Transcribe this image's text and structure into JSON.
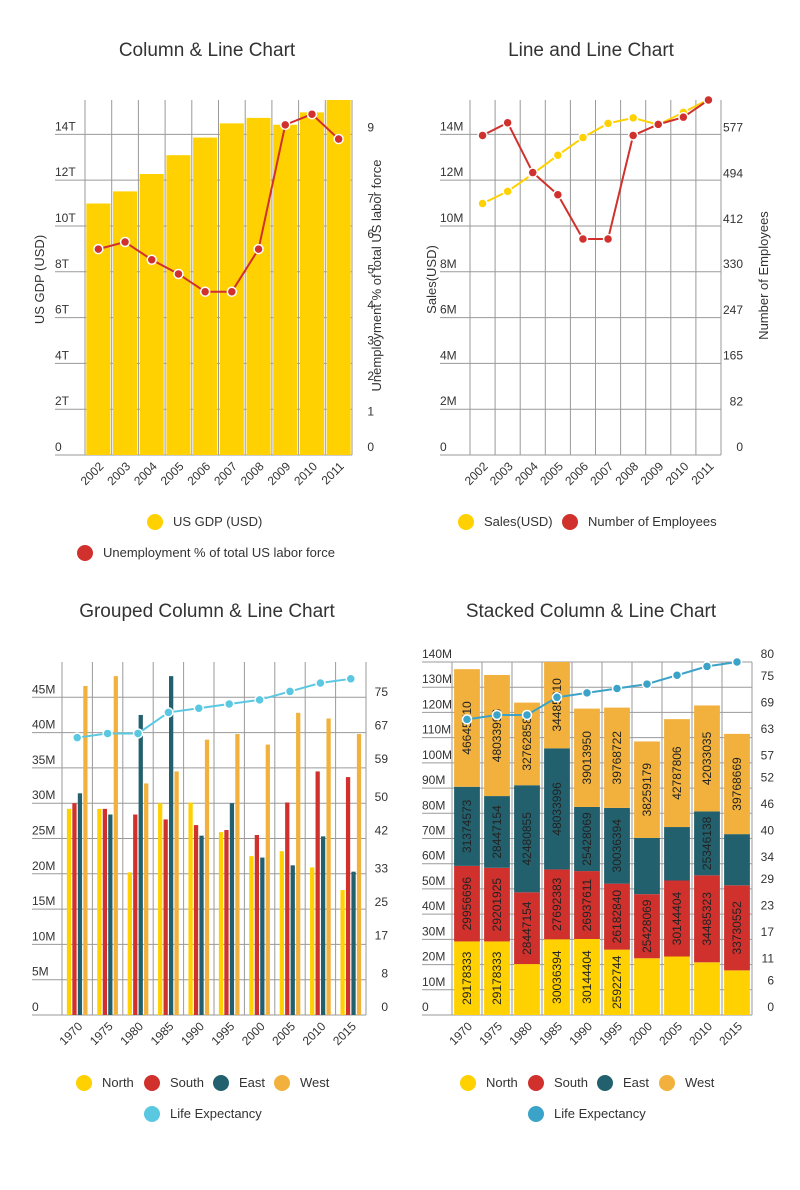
{
  "chart_data": [
    {
      "id": "chart1",
      "type": "bar",
      "title": "Column & Line Chart",
      "xlabel": "",
      "ylabel": "US GDP (USD)",
      "y2label": "Unemployment % of total US labor force",
      "categories": [
        "2002",
        "2003",
        "2004",
        "2005",
        "2006",
        "2007",
        "2008",
        "2009",
        "2010",
        "2011"
      ],
      "grid": true,
      "ylim": [
        0,
        15.5
      ],
      "y2lim": [
        0,
        10
      ],
      "yticks": [
        0,
        2,
        4,
        6,
        8,
        10,
        12,
        14
      ],
      "ytick_labels": [
        "0",
        "2T",
        "4T",
        "6T",
        "8T",
        "10T",
        "12T",
        "14T"
      ],
      "y2ticks": [
        0,
        1,
        2,
        3,
        4,
        5,
        6,
        7,
        9
      ],
      "y2tick_labels": [
        "0",
        "1",
        "2",
        "3",
        "4",
        "5",
        "6",
        "7",
        "9"
      ],
      "series": [
        {
          "name": "US GDP (USD)",
          "kind": "bar",
          "axis": "left",
          "color": "#FFD100",
          "values": [
            10.98,
            11.51,
            12.27,
            13.09,
            13.86,
            14.48,
            14.72,
            14.42,
            14.96,
            15.52
          ]
        },
        {
          "name": "Unemployment % of total US labor force",
          "kind": "line",
          "axis": "right",
          "color": "#D0312D",
          "values": [
            5.8,
            6.0,
            5.5,
            5.1,
            4.6,
            4.6,
            5.8,
            9.3,
            9.6,
            8.9
          ]
        }
      ],
      "legend": [
        {
          "label": "US GDP (USD)",
          "color": "#FFD100"
        },
        {
          "label": "Unemployment % of total US labor force",
          "color": "#D0312D"
        }
      ]
    },
    {
      "id": "chart2",
      "type": "line",
      "title": "Line and Line Chart",
      "xlabel": "",
      "ylabel": "Sales(USD)",
      "y2label": "Number of Employees",
      "categories": [
        "2002",
        "2003",
        "2004",
        "2005",
        "2006",
        "2007",
        "2008",
        "2009",
        "2010",
        "2011"
      ],
      "grid": true,
      "ylim": [
        0,
        15.5
      ],
      "y2lim": [
        0,
        641
      ],
      "yticks": [
        0,
        2,
        4,
        6,
        8,
        10,
        12,
        14
      ],
      "ytick_labels": [
        "0",
        "2M",
        "4M",
        "6M",
        "8M",
        "10M",
        "12M",
        "14M"
      ],
      "y2ticks": [
        0,
        82,
        165,
        247,
        330,
        412,
        494,
        577
      ],
      "y2tick_labels": [
        "0",
        "82",
        "165",
        "247",
        "330",
        "412",
        "494",
        "577"
      ],
      "series": [
        {
          "name": "Sales(USD)",
          "kind": "line",
          "axis": "left",
          "color": "#FFD100",
          "values": [
            10.98,
            11.51,
            12.27,
            13.09,
            13.86,
            14.48,
            14.72,
            14.42,
            14.96,
            15.52
          ]
        },
        {
          "name": "Number of Employees",
          "kind": "line",
          "axis": "right",
          "color": "#D0312D",
          "values": [
            577,
            600,
            510,
            470,
            390,
            390,
            577,
            597,
            610,
            641
          ]
        }
      ],
      "legend": [
        {
          "label": "Sales(USD)",
          "color": "#FFD100"
        },
        {
          "label": "Number of Employees",
          "color": "#D0312D"
        }
      ]
    },
    {
      "id": "chart3",
      "type": "bar",
      "title": "Grouped Column & Line Chart",
      "xlabel": "",
      "ylabel": "",
      "categories": [
        "1970",
        "1975",
        "1980",
        "1985",
        "1990",
        "1995",
        "2000",
        "2005",
        "2010",
        "2015"
      ],
      "grid": true,
      "ylim": [
        0,
        50
      ],
      "y2lim": [
        0,
        84
      ],
      "yticks": [
        0,
        5,
        10,
        15,
        20,
        25,
        30,
        35,
        40,
        45
      ],
      "ytick_labels": [
        "0",
        "5M",
        "10M",
        "15M",
        "20M",
        "25M",
        "30M",
        "35M",
        "40M",
        "45M"
      ],
      "y2ticks": [
        0,
        8,
        17,
        25,
        33,
        42,
        50,
        59,
        67,
        75
      ],
      "y2tick_labels": [
        "0",
        "8",
        "17",
        "25",
        "33",
        "42",
        "50",
        "59",
        "67",
        "75"
      ],
      "series": [
        {
          "name": "North",
          "kind": "bar",
          "color": "#FFD100",
          "values": [
            29.2,
            29.2,
            20.2,
            30.0,
            30.1,
            25.9,
            22.5,
            23.2,
            20.9,
            17.7
          ]
        },
        {
          "name": "South",
          "kind": "bar",
          "color": "#D0312D",
          "values": [
            30.0,
            29.2,
            28.4,
            27.7,
            26.9,
            26.2,
            25.5,
            30.1,
            34.5,
            33.7
          ]
        },
        {
          "name": "East",
          "kind": "bar",
          "color": "#22606E",
          "values": [
            31.4,
            28.4,
            42.5,
            48.0,
            25.4,
            30.0,
            22.3,
            21.2,
            25.3,
            20.3
          ]
        },
        {
          "name": "West",
          "kind": "bar",
          "color": "#F2B13C",
          "values": [
            46.6,
            48.0,
            32.8,
            34.5,
            39.0,
            39.8,
            38.3,
            42.8,
            42.0,
            39.8
          ]
        },
        {
          "name": "Life Expectancy",
          "kind": "line",
          "axis": "right",
          "color": "#5BC8E2",
          "values": [
            66,
            67,
            67,
            72,
            73,
            74,
            75,
            77,
            79,
            80
          ]
        }
      ],
      "legend": [
        {
          "label": "North",
          "color": "#FFD100"
        },
        {
          "label": "South",
          "color": "#D0312D"
        },
        {
          "label": "East",
          "color": "#22606E"
        },
        {
          "label": "West",
          "color": "#F2B13C"
        },
        {
          "label": "Life Expectancy",
          "color": "#5BC8E2"
        }
      ]
    },
    {
      "id": "chart4",
      "type": "bar",
      "stacked": true,
      "title": "Stacked Column & Line Chart",
      "xlabel": "",
      "ylabel": "",
      "categories": [
        "1970",
        "1975",
        "1980",
        "1985",
        "1990",
        "1995",
        "2000",
        "2005",
        "2010",
        "2015"
      ],
      "grid": true,
      "ylim": [
        0,
        140
      ],
      "y2lim": [
        0,
        80
      ],
      "yticks": [
        0,
        10,
        20,
        30,
        40,
        50,
        60,
        70,
        80,
        90,
        100,
        110,
        120,
        130,
        140
      ],
      "ytick_labels": [
        "0",
        "10M",
        "20M",
        "30M",
        "40M",
        "50M",
        "60M",
        "70M",
        "80M",
        "90M",
        "100M",
        "110M",
        "120M",
        "130M",
        "140M"
      ],
      "y2ticks": [
        0,
        6,
        11,
        17,
        23,
        29,
        34,
        40,
        46,
        52,
        57,
        63,
        69,
        75,
        80
      ],
      "y2tick_labels": [
        "0",
        "6",
        "11",
        "17",
        "23",
        "29",
        "34",
        "40",
        "46",
        "52",
        "57",
        "63",
        "69",
        "75",
        "80"
      ],
      "series": [
        {
          "name": "North",
          "kind": "bar",
          "color": "#FFD100",
          "values": [
            29.178333,
            29.178333,
            20.2,
            30.036394,
            30.144404,
            25.922744,
            22.5,
            23.2,
            20.9,
            17.7
          ],
          "labels": [
            "29178333",
            "29178333",
            "",
            "30036394",
            "30144404",
            "25922744",
            "",
            "",
            "",
            ""
          ]
        },
        {
          "name": "South",
          "kind": "bar",
          "color": "#D0312D",
          "values": [
            29.956696,
            29.201925,
            28.447154,
            27.692383,
            26.937611,
            26.18284,
            25.428069,
            30.144404,
            34.485323,
            33.730552
          ],
          "labels": [
            "29956696",
            "29201925",
            "28447154",
            "27692383",
            "26937611",
            "26182840",
            "25428069",
            "30144404",
            "34485323",
            "33730552"
          ]
        },
        {
          "name": "East",
          "kind": "bar",
          "color": "#22606E",
          "values": [
            31.374573,
            28.447154,
            42.480855,
            48.033996,
            25.428069,
            30.036394,
            22.3,
            21.2,
            25.346138,
            20.3
          ],
          "labels": [
            "31374573",
            "28447154",
            "42480855",
            "48033996",
            "25428069",
            "30036394",
            "",
            "",
            "25346138",
            ""
          ]
        },
        {
          "name": "West",
          "kind": "bar",
          "color": "#F2B13C",
          "values": [
            46.64571,
            48.033996,
            32.762858,
            34.48531,
            39.01395,
            39.768722,
            38.259179,
            42.787806,
            42.033035,
            39.768669
          ],
          "labels": [
            "46645710",
            "48033996",
            "32762858",
            "34485310",
            "39013950",
            "39768722",
            "38259179",
            "42787806",
            "42033035",
            "39768669"
          ]
        },
        {
          "name": "Life Expectancy",
          "kind": "line",
          "axis": "right",
          "color": "#3BA3C8",
          "values": [
            67,
            68,
            68,
            72,
            73,
            74,
            75,
            77,
            79,
            80
          ]
        }
      ],
      "legend": [
        {
          "label": "North",
          "color": "#FFD100"
        },
        {
          "label": "South",
          "color": "#D0312D"
        },
        {
          "label": "East",
          "color": "#22606E"
        },
        {
          "label": "West",
          "color": "#F2B13C"
        },
        {
          "label": "Life Expectancy",
          "color": "#3BA3C8"
        }
      ]
    }
  ]
}
